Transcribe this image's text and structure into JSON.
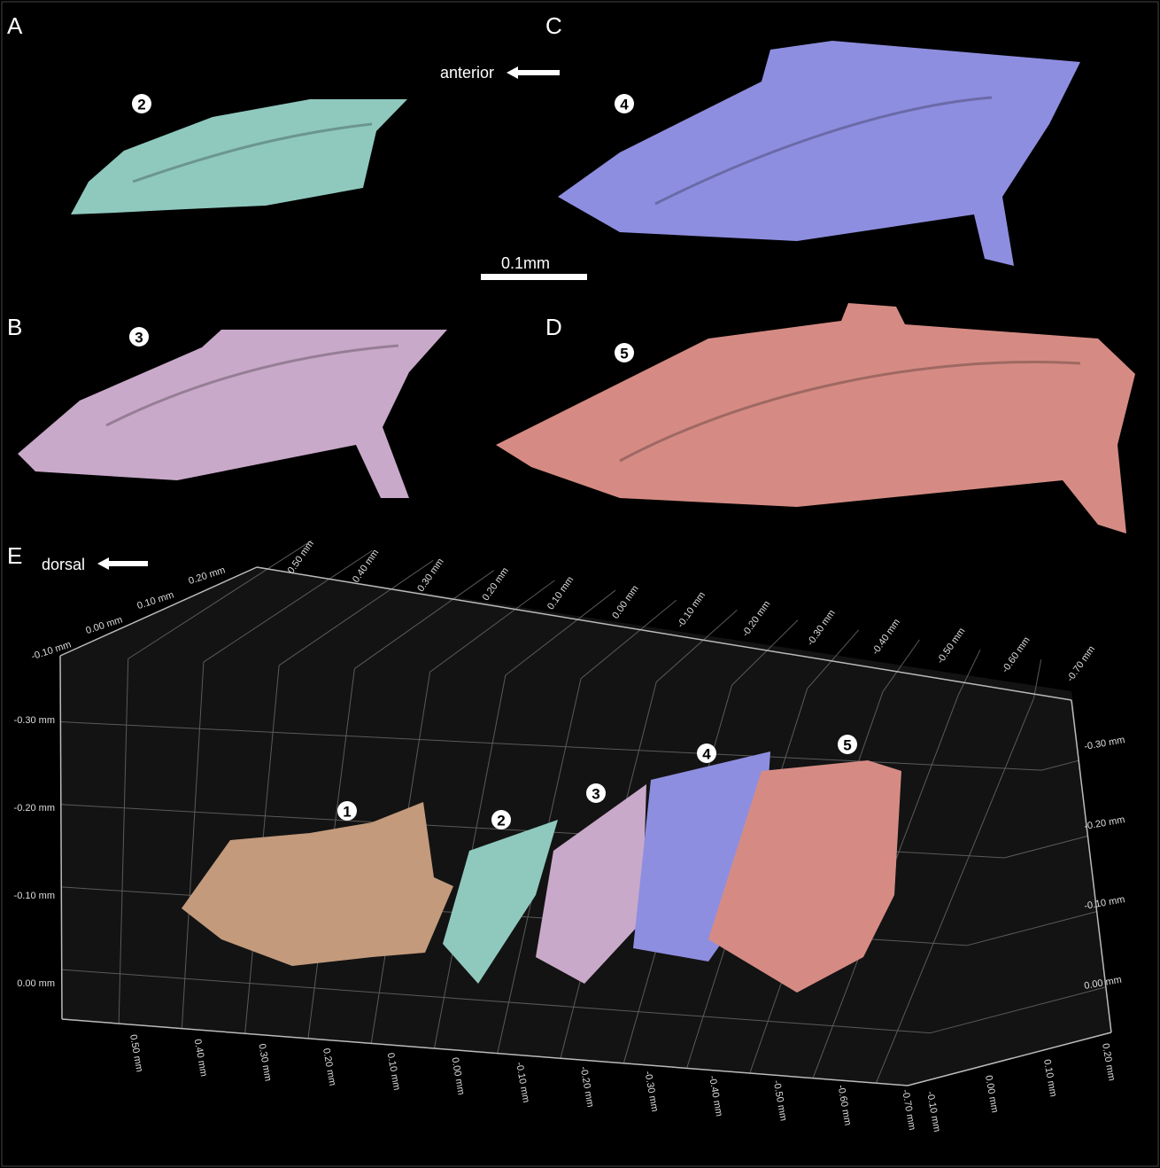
{
  "panels": [
    {
      "label": "A",
      "specimen": "2"
    },
    {
      "label": "B",
      "specimen": "3"
    },
    {
      "label": "C",
      "specimen": "4"
    },
    {
      "label": "D",
      "specimen": "5"
    }
  ],
  "orientation": {
    "direction": "anterior",
    "scale_bar": "0.1mm"
  },
  "panel_e": {
    "label": "E",
    "direction": "dorsal",
    "specimens": [
      "1",
      "2",
      "3",
      "4",
      "5"
    ],
    "axes": {
      "back_left": [
        "0.20 mm",
        "0.10 mm",
        "0.00 mm",
        "-0.10 mm"
      ],
      "top": [
        "0.50 mm",
        "0.40 mm",
        "0.30 mm",
        "0.20 mm",
        "0.10 mm",
        "0.00 mm",
        "-0.10 mm",
        "-0.20 mm",
        "-0.30 mm",
        "-0.40 mm",
        "-0.50 mm",
        "-0.60 mm",
        "-0.70 mm"
      ],
      "left": [
        "-0.30 mm",
        "-0.20 mm",
        "-0.10 mm",
        "0.00 mm"
      ],
      "right": [
        "-0.30 mm",
        "-0.20 mm",
        "-0.10 mm",
        "0.00 mm"
      ],
      "bottom": [
        "0.50 mm",
        "0.40 mm",
        "0.30 mm",
        "0.20 mm",
        "0.10 mm",
        "0.00 mm",
        "-0.10 mm",
        "-0.20 mm",
        "-0.30 mm",
        "-0.40 mm",
        "-0.50 mm",
        "-0.60 mm",
        "-0.70 mm"
      ],
      "depth": [
        "-0.10 mm",
        "0.00 mm",
        "0.10 mm",
        "0.20 mm"
      ]
    }
  }
}
